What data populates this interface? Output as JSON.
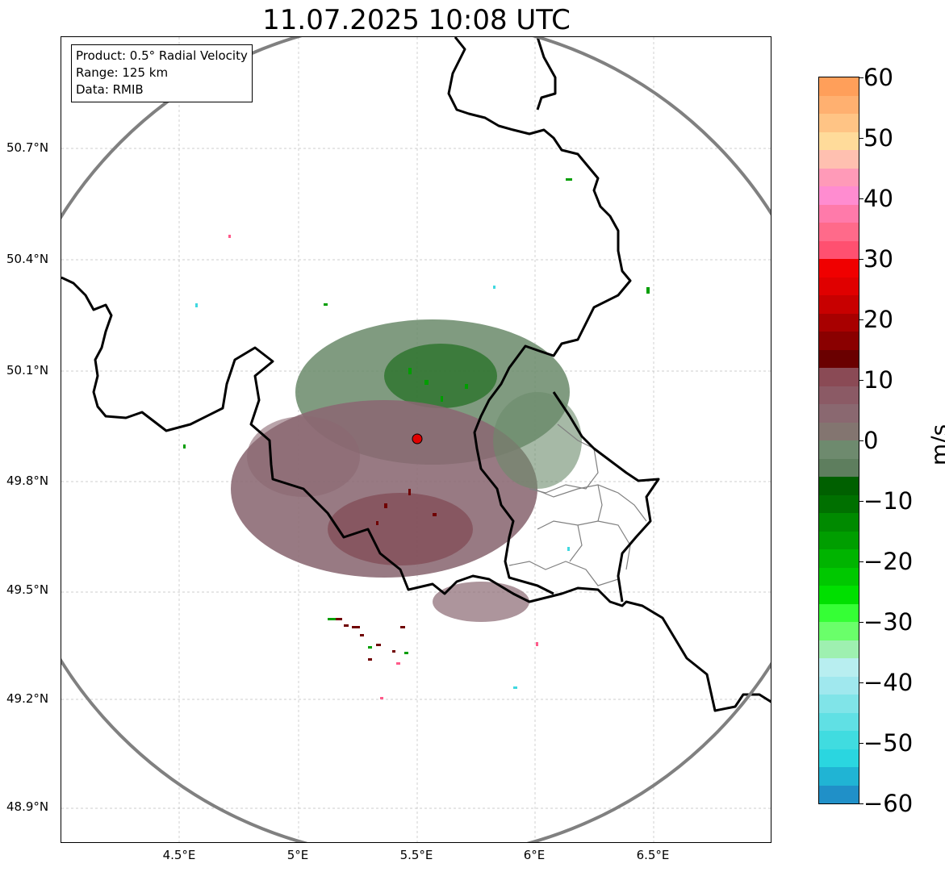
{
  "title": "11.07.2025 10:08 UTC",
  "infobox": {
    "product": "Product: 0.5° Radial Velocity",
    "range": "Range: 125 km",
    "data": "Data: RMIB"
  },
  "lat_labels": [
    "50.7°N",
    "50.4°N",
    "50.1°N",
    "49.8°N",
    "49.5°N",
    "49.2°N",
    "48.9°N"
  ],
  "lon_labels": [
    "4.5°E",
    "5°E",
    "5.5°E",
    "6°E",
    "6.5°E"
  ],
  "colorbar": {
    "unit": "m/s",
    "ticks": [
      "60",
      "50",
      "40",
      "30",
      "20",
      "10",
      "0",
      "−10",
      "−20",
      "−30",
      "−40",
      "−50",
      "−60"
    ],
    "colors_top_to_bottom": [
      "#ff9f5a",
      "#ffb070",
      "#ffc485",
      "#ffdb9a",
      "#ffc0b0",
      "#ff9ab8",
      "#ff8cd0",
      "#ff7aaa",
      "#ff6a8a",
      "#ff5070",
      "#f00000",
      "#e00000",
      "#c80000",
      "#a80000",
      "#8a0000",
      "#6a0000",
      "#8a4a55",
      "#8b5a65",
      "#8a6870",
      "#837570",
      "#6e8a6e",
      "#5e7e5e",
      "#006000",
      "#007000",
      "#008a00",
      "#009e00",
      "#00b400",
      "#00c800",
      "#00e000",
      "#35ff35",
      "#6aff6a",
      "#9ef0b0",
      "#b8eef0",
      "#a0e8ee",
      "#80e4e8",
      "#60e0e4",
      "#40dce0",
      "#2ad6e0",
      "#20b4d4",
      "#2090c8"
    ],
    "colors": {
      "warm": "#ff0000",
      "cool": "#00aa00"
    }
  },
  "map": {
    "radar_site": "radar-site-marker",
    "colors": {
      "range_ring": "#808080",
      "border": "#000000",
      "subregion": "#808080",
      "site": "#e00000"
    }
  }
}
